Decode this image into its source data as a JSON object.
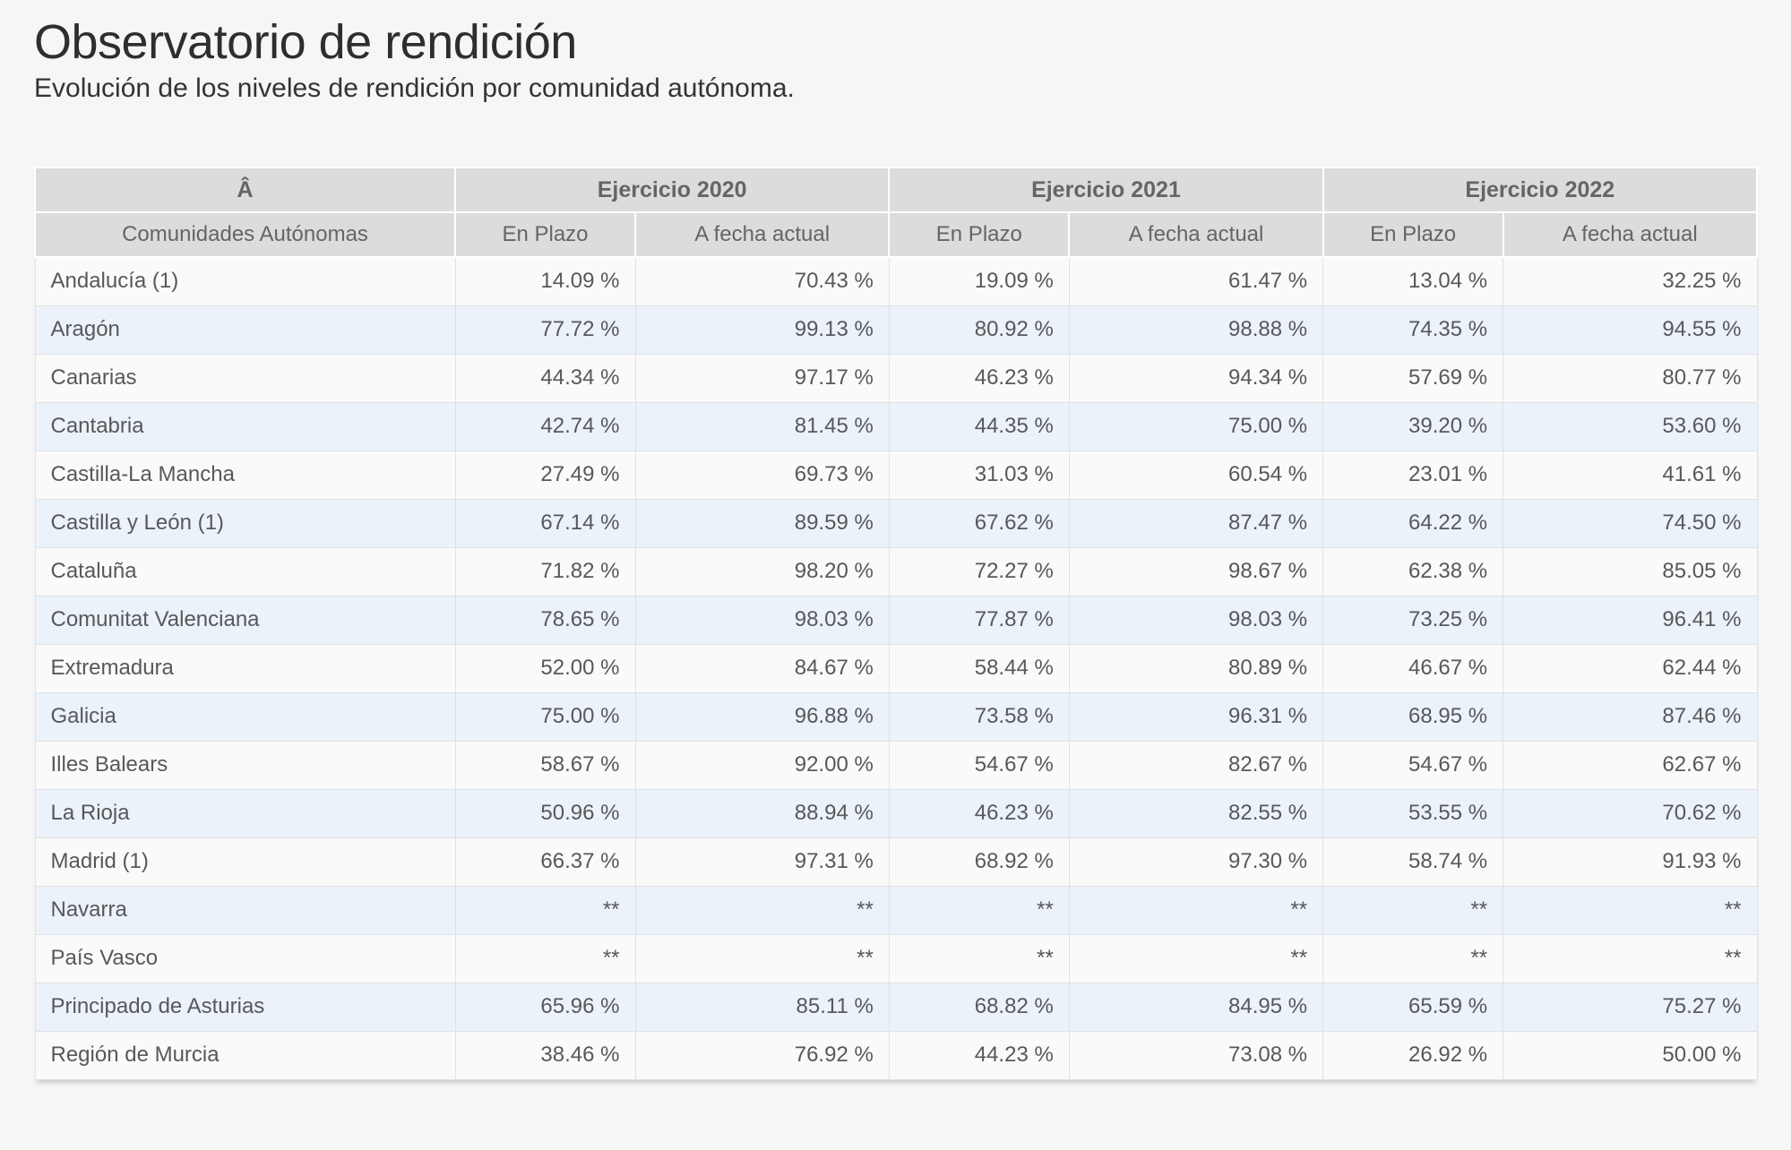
{
  "header": {
    "title": "Observatorio de rendición",
    "subtitle": "Evolución de los niveles de rendición por comunidad autónoma."
  },
  "table": {
    "corner_label": "Â",
    "group_headers": [
      "Ejercicio 2020",
      "Ejercicio 2021",
      "Ejercicio 2022"
    ],
    "first_col_header": "Comunidades Autónomas",
    "sub_headers": [
      "En Plazo",
      "A fecha actual"
    ],
    "rows": [
      {
        "name": "Andalucía (1)",
        "values": [
          "14.09 %",
          "70.43 %",
          "19.09 %",
          "61.47 %",
          "13.04 %",
          "32.25 %"
        ]
      },
      {
        "name": "Aragón",
        "values": [
          "77.72 %",
          "99.13 %",
          "80.92 %",
          "98.88 %",
          "74.35 %",
          "94.55 %"
        ]
      },
      {
        "name": "Canarias",
        "values": [
          "44.34 %",
          "97.17 %",
          "46.23 %",
          "94.34 %",
          "57.69 %",
          "80.77 %"
        ]
      },
      {
        "name": "Cantabria",
        "values": [
          "42.74 %",
          "81.45 %",
          "44.35 %",
          "75.00 %",
          "39.20 %",
          "53.60 %"
        ]
      },
      {
        "name": "Castilla-La Mancha",
        "values": [
          "27.49 %",
          "69.73 %",
          "31.03 %",
          "60.54 %",
          "23.01 %",
          "41.61 %"
        ]
      },
      {
        "name": "Castilla y León (1)",
        "values": [
          "67.14 %",
          "89.59 %",
          "67.62 %",
          "87.47 %",
          "64.22 %",
          "74.50 %"
        ]
      },
      {
        "name": "Cataluña",
        "values": [
          "71.82 %",
          "98.20 %",
          "72.27 %",
          "98.67 %",
          "62.38 %",
          "85.05 %"
        ]
      },
      {
        "name": "Comunitat Valenciana",
        "values": [
          "78.65 %",
          "98.03 %",
          "77.87 %",
          "98.03 %",
          "73.25 %",
          "96.41 %"
        ]
      },
      {
        "name": "Extremadura",
        "values": [
          "52.00 %",
          "84.67 %",
          "58.44 %",
          "80.89 %",
          "46.67 %",
          "62.44 %"
        ]
      },
      {
        "name": "Galicia",
        "values": [
          "75.00 %",
          "96.88 %",
          "73.58 %",
          "96.31 %",
          "68.95 %",
          "87.46 %"
        ]
      },
      {
        "name": "Illes Balears",
        "values": [
          "58.67 %",
          "92.00 %",
          "54.67 %",
          "82.67 %",
          "54.67 %",
          "62.67 %"
        ]
      },
      {
        "name": "La Rioja",
        "values": [
          "50.96 %",
          "88.94 %",
          "46.23 %",
          "82.55 %",
          "53.55 %",
          "70.62 %"
        ]
      },
      {
        "name": "Madrid (1)",
        "values": [
          "66.37 %",
          "97.31 %",
          "68.92 %",
          "97.30 %",
          "58.74 %",
          "91.93 %"
        ]
      },
      {
        "name": "Navarra",
        "values": [
          "**",
          "**",
          "**",
          "**",
          "**",
          "**"
        ]
      },
      {
        "name": "País Vasco",
        "values": [
          "**",
          "**",
          "**",
          "**",
          "**",
          "**"
        ]
      },
      {
        "name": "Principado de Asturias",
        "values": [
          "65.96 %",
          "85.11 %",
          "68.82 %",
          "84.95 %",
          "65.59 %",
          "75.27 %"
        ]
      },
      {
        "name": "Región de Murcia",
        "values": [
          "38.46 %",
          "76.92 %",
          "44.23 %",
          "73.08 %",
          "26.92 %",
          "50.00 %"
        ]
      }
    ]
  },
  "colors": {
    "page_bg": "#f6f6f7",
    "header_bg": "#dcdcdd",
    "row_odd_bg": "#fafafa",
    "row_even_bg": "#ebf2fa",
    "border": "#dfe1e5",
    "text": "#57585a",
    "header_text": "#656565",
    "title_text": "#2e2e2e"
  }
}
